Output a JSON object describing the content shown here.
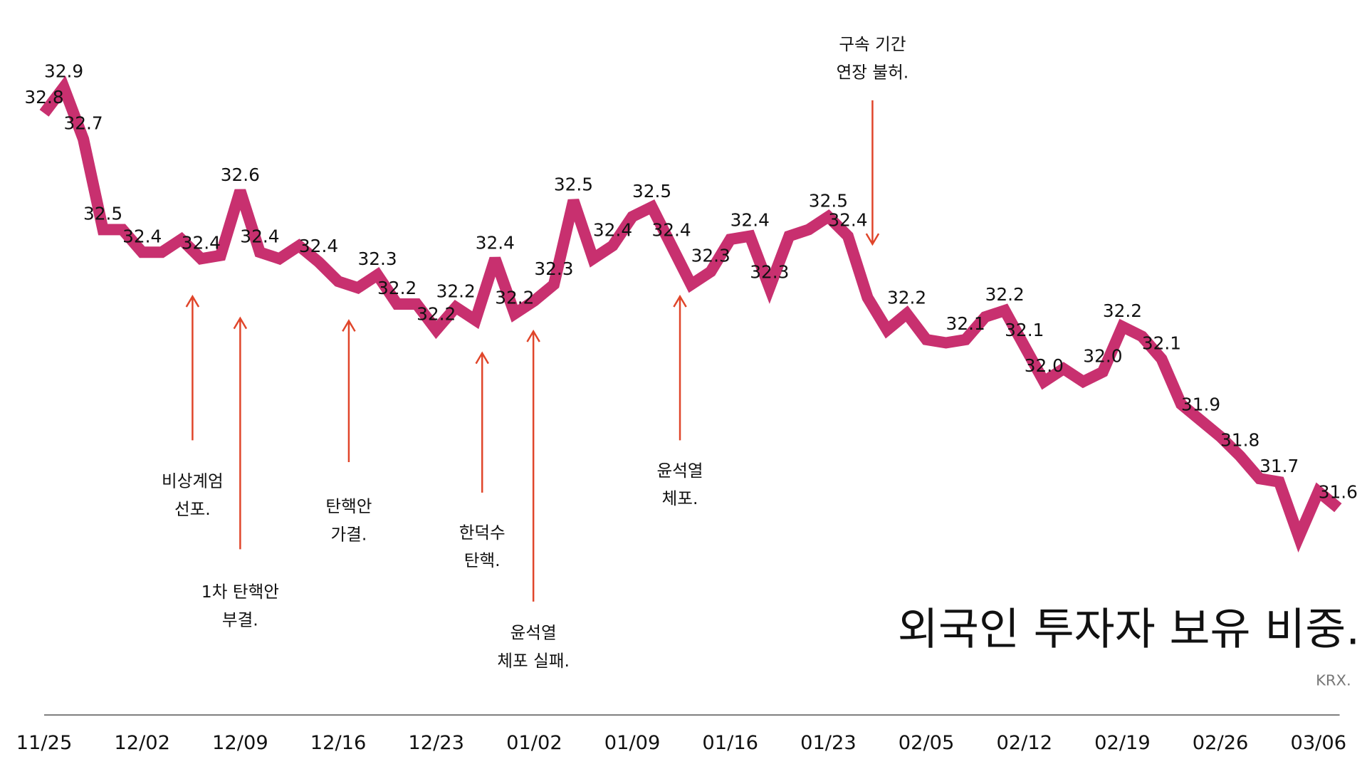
{
  "chart_data": {
    "type": "line",
    "title": "외국인 투자자 보유 비중.",
    "source": "KRX.",
    "color": "#c8306f",
    "categories": [
      "11/25",
      null,
      null,
      null,
      null,
      "12/02",
      null,
      null,
      null,
      null,
      "12/09",
      null,
      null,
      null,
      null,
      "12/16",
      null,
      null,
      null,
      null,
      "12/23",
      null,
      null,
      null,
      null,
      "01/02",
      null,
      null,
      null,
      null,
      "01/09",
      null,
      null,
      null,
      null,
      "01/16",
      null,
      null,
      null,
      null,
      "01/23",
      null,
      null,
      null,
      null,
      "02/05",
      null,
      null,
      null,
      null,
      "02/12",
      null,
      null,
      null,
      null,
      "02/19",
      null,
      null,
      null,
      null,
      "02/26",
      null,
      null,
      null,
      null,
      "03/06",
      null
    ],
    "values": [
      32.82,
      32.9,
      32.74,
      32.46,
      32.46,
      32.39,
      32.39,
      32.43,
      32.37,
      32.38,
      32.58,
      32.39,
      32.37,
      32.41,
      32.36,
      32.3,
      32.28,
      32.32,
      32.23,
      32.23,
      32.15,
      32.22,
      32.18,
      32.37,
      32.2,
      32.24,
      32.29,
      32.55,
      32.37,
      32.41,
      32.5,
      32.53,
      32.41,
      32.29,
      32.33,
      32.43,
      32.44,
      32.28,
      32.44,
      32.46,
      32.5,
      32.44,
      32.25,
      32.15,
      32.2,
      32.12,
      32.11,
      32.12,
      32.19,
      32.21,
      32.1,
      31.99,
      32.03,
      31.99,
      32.02,
      32.16,
      32.13,
      32.06,
      31.92,
      31.87,
      31.82,
      31.76,
      31.69,
      31.68,
      31.51,
      31.65,
      31.6
    ],
    "value_labels": [
      "32.8",
      "32.9",
      "32.7",
      "32.5",
      null,
      "32.4",
      null,
      null,
      "32.4",
      null,
      "32.6",
      "32.4",
      null,
      null,
      "32.4",
      null,
      null,
      "32.3",
      "32.2",
      null,
      "32.2",
      "32.2",
      null,
      "32.4",
      "32.2",
      null,
      "32.3",
      "32.5",
      null,
      "32.4",
      null,
      "32.5",
      "32.4",
      null,
      "32.3",
      null,
      "32.4",
      "32.3",
      null,
      null,
      "32.5",
      "32.4",
      null,
      null,
      "32.2",
      null,
      null,
      "32.1",
      null,
      "32.2",
      "32.1",
      "32.0",
      null,
      null,
      "32.0",
      "32.2",
      null,
      "32.1",
      null,
      "31.9",
      null,
      "31.8",
      null,
      "31.7",
      null,
      null,
      "31.6"
    ],
    "ylim": [
      31.0,
      33.0
    ],
    "annotations": [
      [
        "비상계엄",
        "선포."
      ],
      [
        "1차 탄핵안",
        "부결."
      ],
      [
        "탄핵안",
        "가결."
      ],
      [
        "한덕수",
        "탄핵."
      ],
      [
        "윤석열",
        "체포 실패."
      ],
      [
        "윤석열",
        "체포."
      ],
      [
        "구속 기간",
        "연장 불허."
      ]
    ]
  }
}
